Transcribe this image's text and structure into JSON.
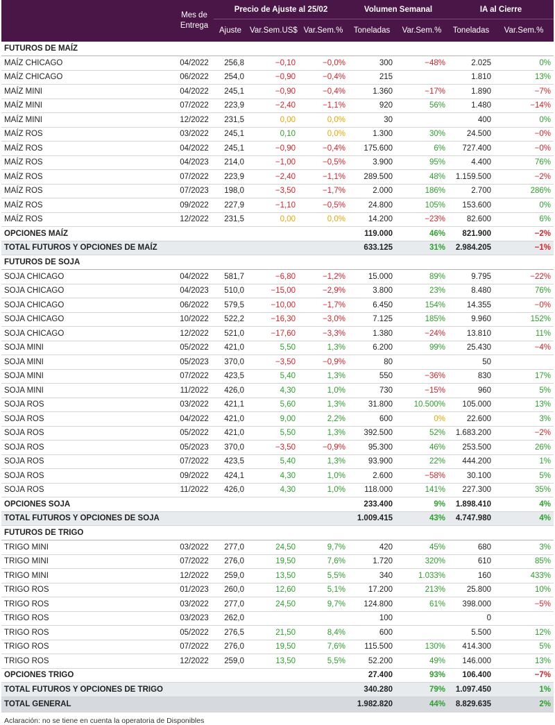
{
  "header": {
    "mes": "Mes de Entrega",
    "mes_line1": "Mes de",
    "mes_line2": "Entrega",
    "precio_group": "Precio de Ajuste al 25/02",
    "volumen_group": "Volumen Semanal",
    "ia_group": "IA al Cierre",
    "ajuste": "Ajuste",
    "var_usd": "Var.Sem.US$",
    "var_pct": "Var.Sem.%",
    "toneladas": "Toneladas",
    "vol_var": "Var.Sem.%",
    "ia_ton": "Toneladas",
    "ia_var": "Var.Sem.%"
  },
  "sections": [
    {
      "title": "FUTUROS DE MAÍZ",
      "rows": [
        [
          "MAÍZ CHICAGO",
          "04/2022",
          "256,8",
          "−0,10",
          "−0,0%",
          "300",
          "−48%",
          "2.025",
          "0%"
        ],
        [
          "MAÍZ CHICAGO",
          "06/2022",
          "254,0",
          "−0,90",
          "−0,4%",
          "215",
          "",
          "1.810",
          "13%"
        ],
        [
          "MAÍZ MINI",
          "04/2022",
          "245,1",
          "−0,90",
          "−0,4%",
          "1.360",
          "−17%",
          "1.890",
          "−7%"
        ],
        [
          "MAÍZ MINI",
          "07/2022",
          "223,9",
          "−2,40",
          "−1,1%",
          "920",
          "56%",
          "1.480",
          "−14%"
        ],
        [
          "MAÍZ MINI",
          "12/2022",
          "231,5",
          "0,00",
          "0,0%",
          "30",
          "",
          "400",
          "0%"
        ],
        [
          "MAÍZ ROS",
          "03/2022",
          "245,1",
          "0,10",
          "0,0%",
          "1.300",
          "30%",
          "24.500",
          "−0%"
        ],
        [
          "MAÍZ ROS",
          "04/2022",
          "245,1",
          "−0,90",
          "−0,4%",
          "175.600",
          "6%",
          "727.400",
          "−0%"
        ],
        [
          "MAÍZ ROS",
          "04/2023",
          "214,0",
          "−1,00",
          "−0,5%",
          "3.900",
          "95%",
          "4.400",
          "76%"
        ],
        [
          "MAÍZ ROS",
          "07/2022",
          "223,9",
          "−2,40",
          "−1,1%",
          "289.500",
          "48%",
          "1.159.500",
          "−2%"
        ],
        [
          "MAÍZ ROS",
          "07/2023",
          "198,0",
          "−3,50",
          "−1,7%",
          "2.000",
          "186%",
          "2.700",
          "286%"
        ],
        [
          "MAÍZ ROS",
          "09/2022",
          "227,9",
          "−1,10",
          "−0,5%",
          "24.800",
          "105%",
          "153.600",
          "0%"
        ],
        [
          "MAÍZ ROS",
          "12/2022",
          "231,5",
          "0,00",
          "0,0%",
          "14.200",
          "−23%",
          "82.600",
          "6%"
        ]
      ],
      "opciones": [
        "OPCIONES MAÍZ",
        "119.000",
        "46%",
        "821.900",
        "−2%"
      ],
      "total": [
        "TOTAL FUTUROS Y OPCIONES DE MAÍZ",
        "633.125",
        "31%",
        "2.984.205",
        "−1%"
      ]
    },
    {
      "title": "FUTUROS DE SOJA",
      "rows": [
        [
          "SOJA CHICAGO",
          "04/2022",
          "581,7",
          "−6,80",
          "−1,2%",
          "15.000",
          "89%",
          "9.795",
          "−22%"
        ],
        [
          "SOJA CHICAGO",
          "04/2023",
          "510,0",
          "−15,00",
          "−2,9%",
          "3.800",
          "23%",
          "8.480",
          "76%"
        ],
        [
          "SOJA CHICAGO",
          "06/2022",
          "579,5",
          "−10,00",
          "−1,7%",
          "6.450",
          "154%",
          "14.355",
          "−0%"
        ],
        [
          "SOJA CHICAGO",
          "10/2022",
          "522,2",
          "−16,30",
          "−3,0%",
          "7.125",
          "185%",
          "9.960",
          "152%"
        ],
        [
          "SOJA CHICAGO",
          "12/2022",
          "521,0",
          "−17,60",
          "−3,3%",
          "1.380",
          "−24%",
          "13.810",
          "11%"
        ],
        [
          "SOJA MINI",
          "05/2022",
          "421,0",
          "5,50",
          "1,3%",
          "6.200",
          "99%",
          "25.430",
          "−4%"
        ],
        [
          "SOJA MINI",
          "05/2023",
          "370,0",
          "−3,50",
          "−0,9%",
          "80",
          "",
          "50",
          ""
        ],
        [
          "SOJA MINI",
          "07/2022",
          "423,5",
          "5,40",
          "1,3%",
          "550",
          "−36%",
          "830",
          "17%"
        ],
        [
          "SOJA MINI",
          "11/2022",
          "426,0",
          "4,30",
          "1,0%",
          "730",
          "−15%",
          "960",
          "5%"
        ],
        [
          "SOJA ROS",
          "03/2022",
          "421,1",
          "5,60",
          "1,3%",
          "31.800",
          "10.500%",
          "105.000",
          "13%"
        ],
        [
          "SOJA ROS",
          "04/2022",
          "421,0",
          "9,00",
          "2,2%",
          "600",
          "0%",
          "22.600",
          "3%"
        ],
        [
          "SOJA ROS",
          "05/2022",
          "421,0",
          "5,50",
          "1,3%",
          "392.500",
          "52%",
          "1.683.200",
          "−2%"
        ],
        [
          "SOJA ROS",
          "05/2023",
          "370,0",
          "−3,50",
          "−0,9%",
          "95.300",
          "46%",
          "253.500",
          "26%"
        ],
        [
          "SOJA ROS",
          "07/2022",
          "423,5",
          "5,40",
          "1,3%",
          "93.900",
          "22%",
          "444.200",
          "1%"
        ],
        [
          "SOJA ROS",
          "09/2022",
          "424,1",
          "4,30",
          "1,0%",
          "2.600",
          "−58%",
          "30.100",
          "5%"
        ],
        [
          "SOJA ROS",
          "11/2022",
          "426,0",
          "4,30",
          "1,0%",
          "118.000",
          "141%",
          "227.300",
          "35%"
        ]
      ],
      "opciones": [
        "OPCIONES SOJA",
        "233.400",
        "9%",
        "1.898.410",
        "4%"
      ],
      "total": [
        "TOTAL FUTUROS Y OPCIONES DE SOJA",
        "1.009.415",
        "43%",
        "4.747.980",
        "4%"
      ]
    },
    {
      "title": "FUTUROS DE TRIGO",
      "rows": [
        [
          "TRIGO MINI",
          "03/2022",
          "277,0",
          "24,50",
          "9,7%",
          "420",
          "45%",
          "680",
          "3%"
        ],
        [
          "TRIGO MINI",
          "07/2022",
          "276,0",
          "19,50",
          "7,6%",
          "1.720",
          "320%",
          "610",
          "85%"
        ],
        [
          "TRIGO MINI",
          "12/2022",
          "259,0",
          "13,50",
          "5,5%",
          "340",
          "1.033%",
          "160",
          "433%"
        ],
        [
          "TRIGO ROS",
          "01/2023",
          "260,0",
          "12,60",
          "5,1%",
          "17.200",
          "213%",
          "25.800",
          "10%"
        ],
        [
          "TRIGO ROS",
          "03/2022",
          "277,0",
          "24,50",
          "9,7%",
          "124.800",
          "61%",
          "398.000",
          "−5%"
        ],
        [
          "TRIGO ROS",
          "03/2023",
          "262,0",
          "",
          "",
          "100",
          "",
          "0",
          ""
        ],
        [
          "TRIGO ROS",
          "05/2022",
          "276,5",
          "21,50",
          "8,4%",
          "600",
          "",
          "5.500",
          "12%"
        ],
        [
          "TRIGO ROS",
          "07/2022",
          "276,0",
          "19,50",
          "7,6%",
          "115.500",
          "130%",
          "414.300",
          "5%"
        ],
        [
          "TRIGO ROS",
          "12/2022",
          "259,0",
          "13,50",
          "5,5%",
          "52.200",
          "49%",
          "146.000",
          "13%"
        ]
      ],
      "opciones": [
        "OPCIONES TRIGO",
        "27.400",
        "93%",
        "106.400",
        "−7%"
      ],
      "total": [
        "TOTAL FUTUROS Y OPCIONES DE TRIGO",
        "340.280",
        "79%",
        "1.097.450",
        "1%"
      ]
    }
  ],
  "general": [
    "TOTAL GENERAL",
    "1.982.820",
    "44%",
    "8.829.635",
    "2%"
  ],
  "note": "Aclaración: no se tiene en cuenta la operatoria de Disponibles",
  "colors": {
    "header_bg": "#4a1547",
    "negative": "#d8232a",
    "positive": "#2ea02e",
    "zero": "#e6a800"
  }
}
